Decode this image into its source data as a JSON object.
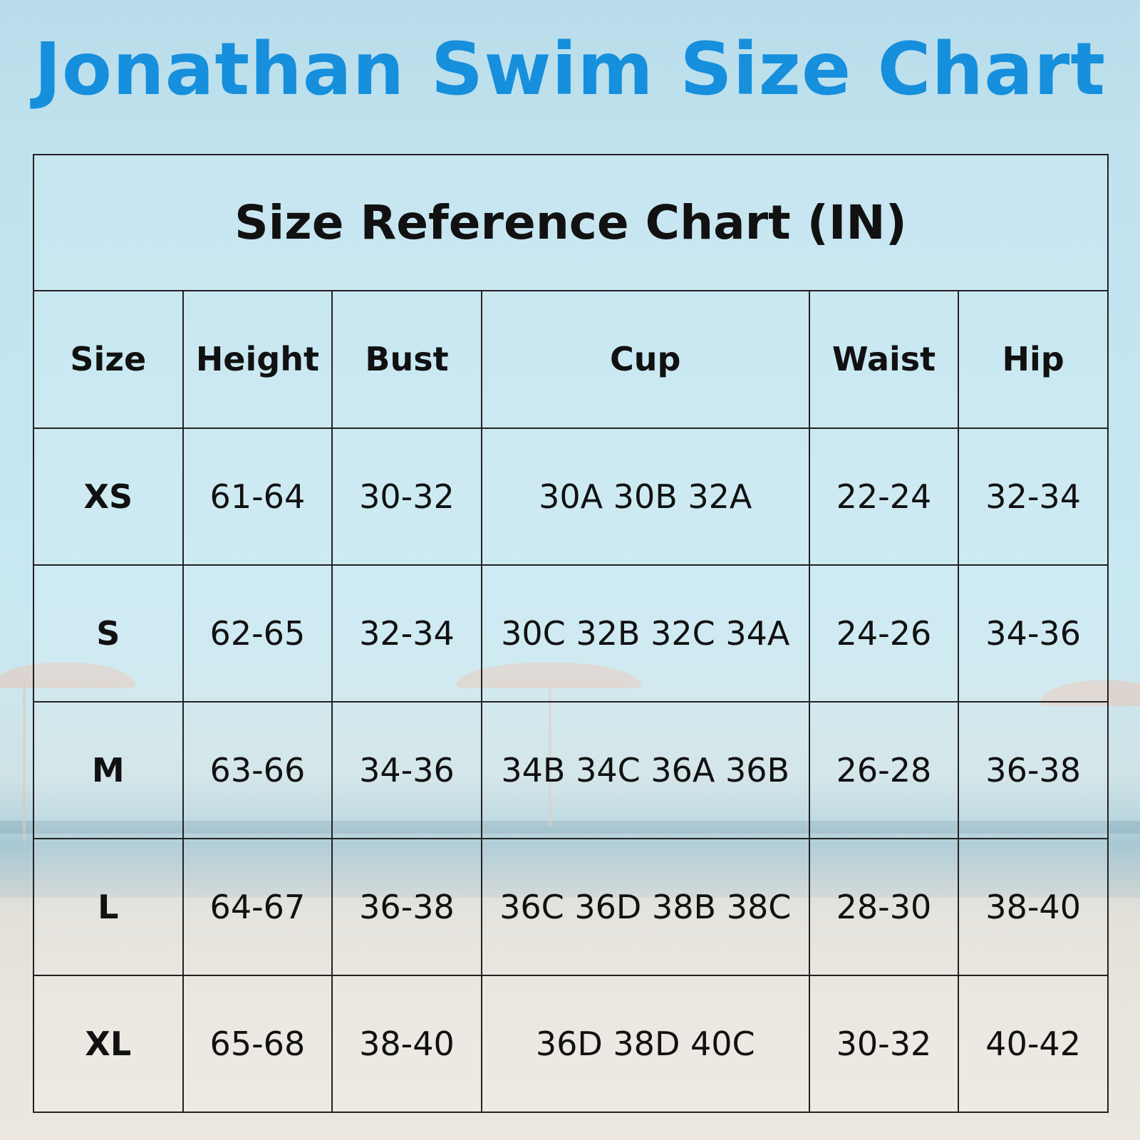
{
  "title": "Jonathan Swim Size Chart",
  "table": {
    "caption": "Size Reference Chart (IN)",
    "headers": [
      "Size",
      "Height",
      "Bust",
      "Cup",
      "Waist",
      "Hip"
    ],
    "rows": [
      [
        "XS",
        "61-64",
        "30-32",
        "30A 30B 32A",
        "22-24",
        "32-34"
      ],
      [
        "S",
        "62-65",
        "32-34",
        "30C 32B 32C 34A",
        "24-26",
        "34-36"
      ],
      [
        "M",
        "63-66",
        "34-36",
        "34B 34C 36A 36B",
        "26-28",
        "36-38"
      ],
      [
        "L",
        "64-67",
        "36-38",
        "36C 36D 38B 38C",
        "28-30",
        "38-40"
      ],
      [
        "XL",
        "65-68",
        "38-40",
        "36D 38D 40C",
        "30-32",
        "40-42"
      ]
    ]
  },
  "colors": {
    "title": "#168fdc",
    "border": "#222222",
    "text": "#111111"
  }
}
